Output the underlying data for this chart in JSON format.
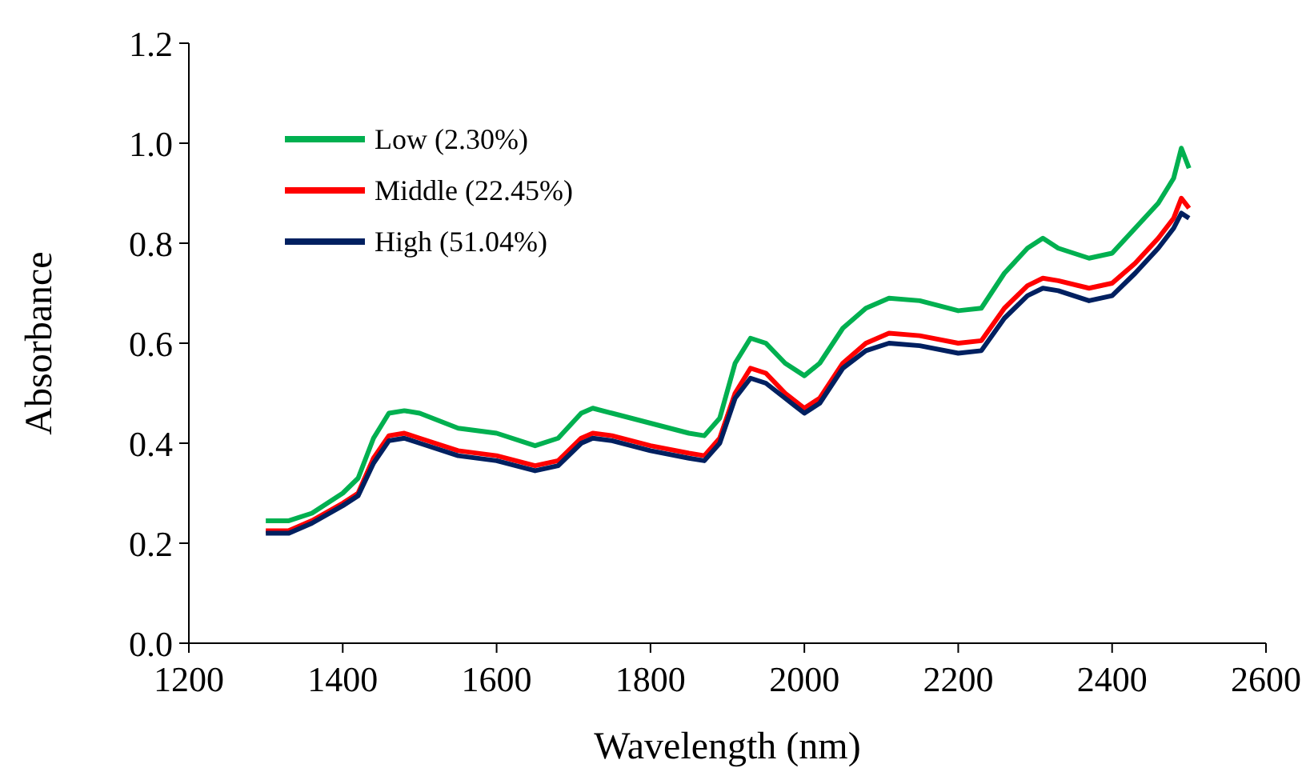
{
  "chart_data": {
    "type": "line",
    "xlabel": "Wavelength (nm)",
    "ylabel": "Absorbance",
    "x": [
      1300,
      1330,
      1360,
      1400,
      1420,
      1440,
      1460,
      1480,
      1500,
      1550,
      1600,
      1650,
      1680,
      1710,
      1725,
      1750,
      1800,
      1850,
      1870,
      1890,
      1910,
      1930,
      1950,
      1975,
      2000,
      2020,
      2050,
      2080,
      2110,
      2150,
      2200,
      2230,
      2260,
      2290,
      2310,
      2330,
      2370,
      2400,
      2430,
      2460,
      2480,
      2490,
      2500
    ],
    "series": [
      {
        "name": "Low (2.30%)",
        "color": "#00b050",
        "values": [
          0.245,
          0.245,
          0.26,
          0.3,
          0.33,
          0.41,
          0.46,
          0.465,
          0.46,
          0.43,
          0.42,
          0.395,
          0.41,
          0.46,
          0.47,
          0.46,
          0.44,
          0.42,
          0.415,
          0.45,
          0.56,
          0.61,
          0.6,
          0.56,
          0.535,
          0.56,
          0.63,
          0.67,
          0.69,
          0.685,
          0.665,
          0.67,
          0.74,
          0.79,
          0.81,
          0.79,
          0.77,
          0.78,
          0.83,
          0.88,
          0.93,
          0.99,
          0.95
        ]
      },
      {
        "name": "Middle (22.45%)",
        "color": "#ff0000",
        "values": [
          0.225,
          0.225,
          0.245,
          0.28,
          0.3,
          0.37,
          0.415,
          0.42,
          0.41,
          0.385,
          0.375,
          0.355,
          0.365,
          0.41,
          0.42,
          0.415,
          0.395,
          0.38,
          0.375,
          0.41,
          0.5,
          0.55,
          0.54,
          0.5,
          0.47,
          0.49,
          0.56,
          0.6,
          0.62,
          0.615,
          0.6,
          0.605,
          0.67,
          0.715,
          0.73,
          0.725,
          0.71,
          0.72,
          0.76,
          0.81,
          0.85,
          0.89,
          0.87
        ]
      },
      {
        "name": "High (51.04%)",
        "color": "#002060",
        "values": [
          0.22,
          0.22,
          0.24,
          0.275,
          0.295,
          0.36,
          0.405,
          0.41,
          0.4,
          0.375,
          0.365,
          0.345,
          0.355,
          0.4,
          0.41,
          0.405,
          0.385,
          0.37,
          0.365,
          0.4,
          0.49,
          0.53,
          0.52,
          0.49,
          0.46,
          0.48,
          0.55,
          0.585,
          0.6,
          0.595,
          0.58,
          0.585,
          0.65,
          0.695,
          0.71,
          0.705,
          0.685,
          0.695,
          0.74,
          0.79,
          0.83,
          0.86,
          0.85
        ]
      }
    ],
    "xlim": [
      1200,
      2600
    ],
    "xticks": [
      1200,
      1400,
      1600,
      1800,
      2000,
      2200,
      2400,
      2600
    ],
    "ylim": [
      0,
      1.2
    ],
    "yticks": [
      {
        "value": 0,
        "label": "0.0"
      },
      {
        "value": 0.2,
        "label": "0.2"
      },
      {
        "value": 0.4,
        "label": "0.4"
      },
      {
        "value": 0.6,
        "label": "0.6"
      },
      {
        "value": 0.8,
        "label": "0.8"
      },
      {
        "value": 1,
        "label": "1.0"
      },
      {
        "value": 1.2,
        "label": "1.2"
      }
    ],
    "legend": "top left",
    "grid": false,
    "marker": "none",
    "line_style": "solid"
  }
}
